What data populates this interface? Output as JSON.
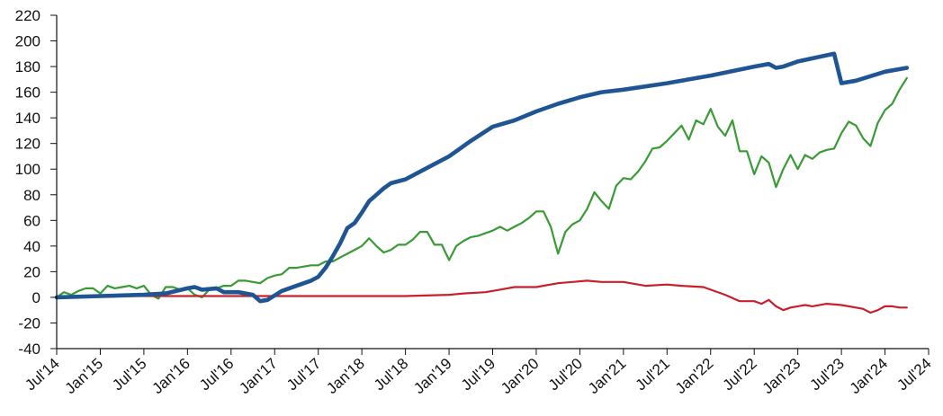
{
  "chart_data": {
    "type": "line",
    "title": "",
    "xlabel": "",
    "ylabel": "",
    "ylim": [
      -40,
      220
    ],
    "yticks": [
      -40,
      -20,
      0,
      20,
      40,
      60,
      80,
      100,
      120,
      140,
      160,
      180,
      200,
      220
    ],
    "xlim": [
      "2014-07",
      "2024-07"
    ],
    "xticks": [
      {
        "date": "2014-07",
        "label": "Jul'14"
      },
      {
        "date": "2015-01",
        "label": "Jan'15"
      },
      {
        "date": "2015-07",
        "label": "Jul'15"
      },
      {
        "date": "2016-01",
        "label": "Jan'16"
      },
      {
        "date": "2016-07",
        "label": "Jul'16"
      },
      {
        "date": "2017-01",
        "label": "Jan'17"
      },
      {
        "date": "2017-07",
        "label": "Jul'17"
      },
      {
        "date": "2018-01",
        "label": "Jan'18"
      },
      {
        "date": "2018-07",
        "label": "Jul'18"
      },
      {
        "date": "2019-01",
        "label": "Jan'19"
      },
      {
        "date": "2019-07",
        "label": "Jul'19"
      },
      {
        "date": "2020-01",
        "label": "Jan'20"
      },
      {
        "date": "2020-07",
        "label": "Jul'20"
      },
      {
        "date": "2021-01",
        "label": "Jan'21"
      },
      {
        "date": "2021-07",
        "label": "Jul'21"
      },
      {
        "date": "2022-01",
        "label": "Jan'22"
      },
      {
        "date": "2022-07",
        "label": "Jul'22"
      },
      {
        "date": "2023-01",
        "label": "Jan'23"
      },
      {
        "date": "2023-07",
        "label": "Jul'23"
      },
      {
        "date": "2024-01",
        "label": "Jan'24"
      },
      {
        "date": "2024-07",
        "label": "Jul'24"
      }
    ],
    "grid": false,
    "legend": "none",
    "series": [
      {
        "color": "#3a9a35",
        "points": [
          [
            "2014-07",
            0
          ],
          [
            "2014-08",
            4
          ],
          [
            "2014-09",
            2
          ],
          [
            "2014-10",
            5
          ],
          [
            "2014-11",
            7
          ],
          [
            "2014-12",
            7
          ],
          [
            "2015-01",
            3
          ],
          [
            "2015-02",
            9
          ],
          [
            "2015-03",
            7
          ],
          [
            "2015-04",
            8
          ],
          [
            "2015-05",
            9
          ],
          [
            "2015-06",
            7
          ],
          [
            "2015-07",
            9
          ],
          [
            "2015-08",
            2
          ],
          [
            "2015-09",
            -1
          ],
          [
            "2015-10",
            8
          ],
          [
            "2015-11",
            8
          ],
          [
            "2015-12",
            6
          ],
          [
            "2016-01",
            7
          ],
          [
            "2016-02",
            2
          ],
          [
            "2016-03",
            0
          ],
          [
            "2016-04",
            6
          ],
          [
            "2016-05",
            7
          ],
          [
            "2016-06",
            9
          ],
          [
            "2016-07",
            9
          ],
          [
            "2016-08",
            13
          ],
          [
            "2016-09",
            13
          ],
          [
            "2016-10",
            12
          ],
          [
            "2016-11",
            11
          ],
          [
            "2016-12",
            15
          ],
          [
            "2017-01",
            17
          ],
          [
            "2017-02",
            18
          ],
          [
            "2017-03",
            23
          ],
          [
            "2017-04",
            23
          ],
          [
            "2017-05",
            24
          ],
          [
            "2017-06",
            25
          ],
          [
            "2017-07",
            25
          ],
          [
            "2017-08",
            28
          ],
          [
            "2017-09",
            28
          ],
          [
            "2017-10",
            31
          ],
          [
            "2017-11",
            34
          ],
          [
            "2017-12",
            37
          ],
          [
            "2018-01",
            40
          ],
          [
            "2018-02",
            46
          ],
          [
            "2018-03",
            40
          ],
          [
            "2018-04",
            35
          ],
          [
            "2018-05",
            37
          ],
          [
            "2018-06",
            41
          ],
          [
            "2018-07",
            41
          ],
          [
            "2018-08",
            45
          ],
          [
            "2018-09",
            51
          ],
          [
            "2018-10",
            51
          ],
          [
            "2018-11",
            41
          ],
          [
            "2018-12",
            41
          ],
          [
            "2019-01",
            29
          ],
          [
            "2019-02",
            40
          ],
          [
            "2019-03",
            44
          ],
          [
            "2019-04",
            47
          ],
          [
            "2019-05",
            48
          ],
          [
            "2019-06",
            50
          ],
          [
            "2019-07",
            52
          ],
          [
            "2019-08",
            55
          ],
          [
            "2019-09",
            52
          ],
          [
            "2019-10",
            55
          ],
          [
            "2019-11",
            58
          ],
          [
            "2019-12",
            62
          ],
          [
            "2020-01",
            67
          ],
          [
            "2020-02",
            67
          ],
          [
            "2020-03",
            55
          ],
          [
            "2020-04",
            34
          ],
          [
            "2020-05",
            51
          ],
          [
            "2020-06",
            57
          ],
          [
            "2020-07",
            60
          ],
          [
            "2020-08",
            69
          ],
          [
            "2020-09",
            82
          ],
          [
            "2020-10",
            75
          ],
          [
            "2020-11",
            69
          ],
          [
            "2020-12",
            87
          ],
          [
            "2021-01",
            93
          ],
          [
            "2021-02",
            92
          ],
          [
            "2021-03",
            98
          ],
          [
            "2021-04",
            106
          ],
          [
            "2021-05",
            116
          ],
          [
            "2021-06",
            117
          ],
          [
            "2021-07",
            122
          ],
          [
            "2021-08",
            128
          ],
          [
            "2021-09",
            134
          ],
          [
            "2021-10",
            123
          ],
          [
            "2021-11",
            138
          ],
          [
            "2021-12",
            135
          ],
          [
            "2022-01",
            147
          ],
          [
            "2022-02",
            133
          ],
          [
            "2022-03",
            126
          ],
          [
            "2022-04",
            138
          ],
          [
            "2022-05",
            114
          ],
          [
            "2022-06",
            114
          ],
          [
            "2022-07",
            96
          ],
          [
            "2022-08",
            110
          ],
          [
            "2022-09",
            105
          ],
          [
            "2022-10",
            86
          ],
          [
            "2022-11",
            100
          ],
          [
            "2022-12",
            111
          ],
          [
            "2023-01",
            100
          ],
          [
            "2023-02",
            111
          ],
          [
            "2023-03",
            108
          ],
          [
            "2023-04",
            113
          ],
          [
            "2023-05",
            115
          ],
          [
            "2023-06",
            116
          ],
          [
            "2023-07",
            128
          ],
          [
            "2023-08",
            137
          ],
          [
            "2023-09",
            134
          ],
          [
            "2023-10",
            124
          ],
          [
            "2023-11",
            118
          ],
          [
            "2023-12",
            136
          ],
          [
            "2024-01",
            146
          ],
          [
            "2024-02",
            151
          ],
          [
            "2024-03",
            162
          ],
          [
            "2024-04",
            171
          ]
        ]
      },
      {
        "color": "#c8202a",
        "points": [
          [
            "2014-07",
            0
          ],
          [
            "2015-01",
            1
          ],
          [
            "2015-07",
            1
          ],
          [
            "2016-01",
            1
          ],
          [
            "2016-07",
            1
          ],
          [
            "2017-01",
            1
          ],
          [
            "2017-07",
            1
          ],
          [
            "2018-01",
            1
          ],
          [
            "2018-07",
            1
          ],
          [
            "2019-01",
            2
          ],
          [
            "2019-03",
            3
          ],
          [
            "2019-06",
            4
          ],
          [
            "2019-08",
            6
          ],
          [
            "2019-10",
            8
          ],
          [
            "2020-01",
            8
          ],
          [
            "2020-04",
            11
          ],
          [
            "2020-08",
            13
          ],
          [
            "2020-10",
            12
          ],
          [
            "2021-01",
            12
          ],
          [
            "2021-04",
            9
          ],
          [
            "2021-07",
            10
          ],
          [
            "2021-09",
            9
          ],
          [
            "2021-12",
            8
          ],
          [
            "2022-03",
            2
          ],
          [
            "2022-05",
            -3
          ],
          [
            "2022-07",
            -3
          ],
          [
            "2022-08",
            -5
          ],
          [
            "2022-09",
            -2
          ],
          [
            "2022-10",
            -7
          ],
          [
            "2022-11",
            -10
          ],
          [
            "2022-12",
            -8
          ],
          [
            "2023-01",
            -7
          ],
          [
            "2023-02",
            -6
          ],
          [
            "2023-03",
            -7
          ],
          [
            "2023-05",
            -5
          ],
          [
            "2023-07",
            -6
          ],
          [
            "2023-09",
            -8
          ],
          [
            "2023-10",
            -9
          ],
          [
            "2023-11",
            -12
          ],
          [
            "2023-12",
            -10
          ],
          [
            "2024-01",
            -7
          ],
          [
            "2024-02",
            -7
          ],
          [
            "2024-03",
            -8
          ],
          [
            "2024-04",
            -8
          ]
        ]
      },
      {
        "color": "#1f5593",
        "points": [
          [
            "2014-07",
            0
          ],
          [
            "2015-01",
            1
          ],
          [
            "2015-07",
            2
          ],
          [
            "2015-10",
            3
          ],
          [
            "2016-01",
            7
          ],
          [
            "2016-02",
            8
          ],
          [
            "2016-03",
            6
          ],
          [
            "2016-05",
            7
          ],
          [
            "2016-06",
            4
          ],
          [
            "2016-08",
            4
          ],
          [
            "2016-10",
            2
          ],
          [
            "2016-11",
            -3
          ],
          [
            "2016-12",
            -2
          ],
          [
            "2017-02",
            5
          ],
          [
            "2017-04",
            9
          ],
          [
            "2017-06",
            13
          ],
          [
            "2017-07",
            16
          ],
          [
            "2017-08",
            23
          ],
          [
            "2017-09",
            32
          ],
          [
            "2017-10",
            42
          ],
          [
            "2017-11",
            54
          ],
          [
            "2017-12",
            58
          ],
          [
            "2018-01",
            66
          ],
          [
            "2018-02",
            75
          ],
          [
            "2018-03",
            80
          ],
          [
            "2018-04",
            85
          ],
          [
            "2018-05",
            89
          ],
          [
            "2018-07",
            92
          ],
          [
            "2018-10",
            101
          ],
          [
            "2019-01",
            110
          ],
          [
            "2019-04",
            122
          ],
          [
            "2019-07",
            133
          ],
          [
            "2019-10",
            138
          ],
          [
            "2020-01",
            145
          ],
          [
            "2020-04",
            151
          ],
          [
            "2020-07",
            156
          ],
          [
            "2020-10",
            160
          ],
          [
            "2021-01",
            162
          ],
          [
            "2021-07",
            167
          ],
          [
            "2022-01",
            173
          ],
          [
            "2022-07",
            180
          ],
          [
            "2022-09",
            182
          ],
          [
            "2022-10",
            179
          ],
          [
            "2022-11",
            180
          ],
          [
            "2023-01",
            184
          ],
          [
            "2023-06",
            190
          ],
          [
            "2023-07",
            167
          ],
          [
            "2023-09",
            169
          ],
          [
            "2024-01",
            176
          ],
          [
            "2024-04",
            179
          ]
        ]
      }
    ]
  }
}
